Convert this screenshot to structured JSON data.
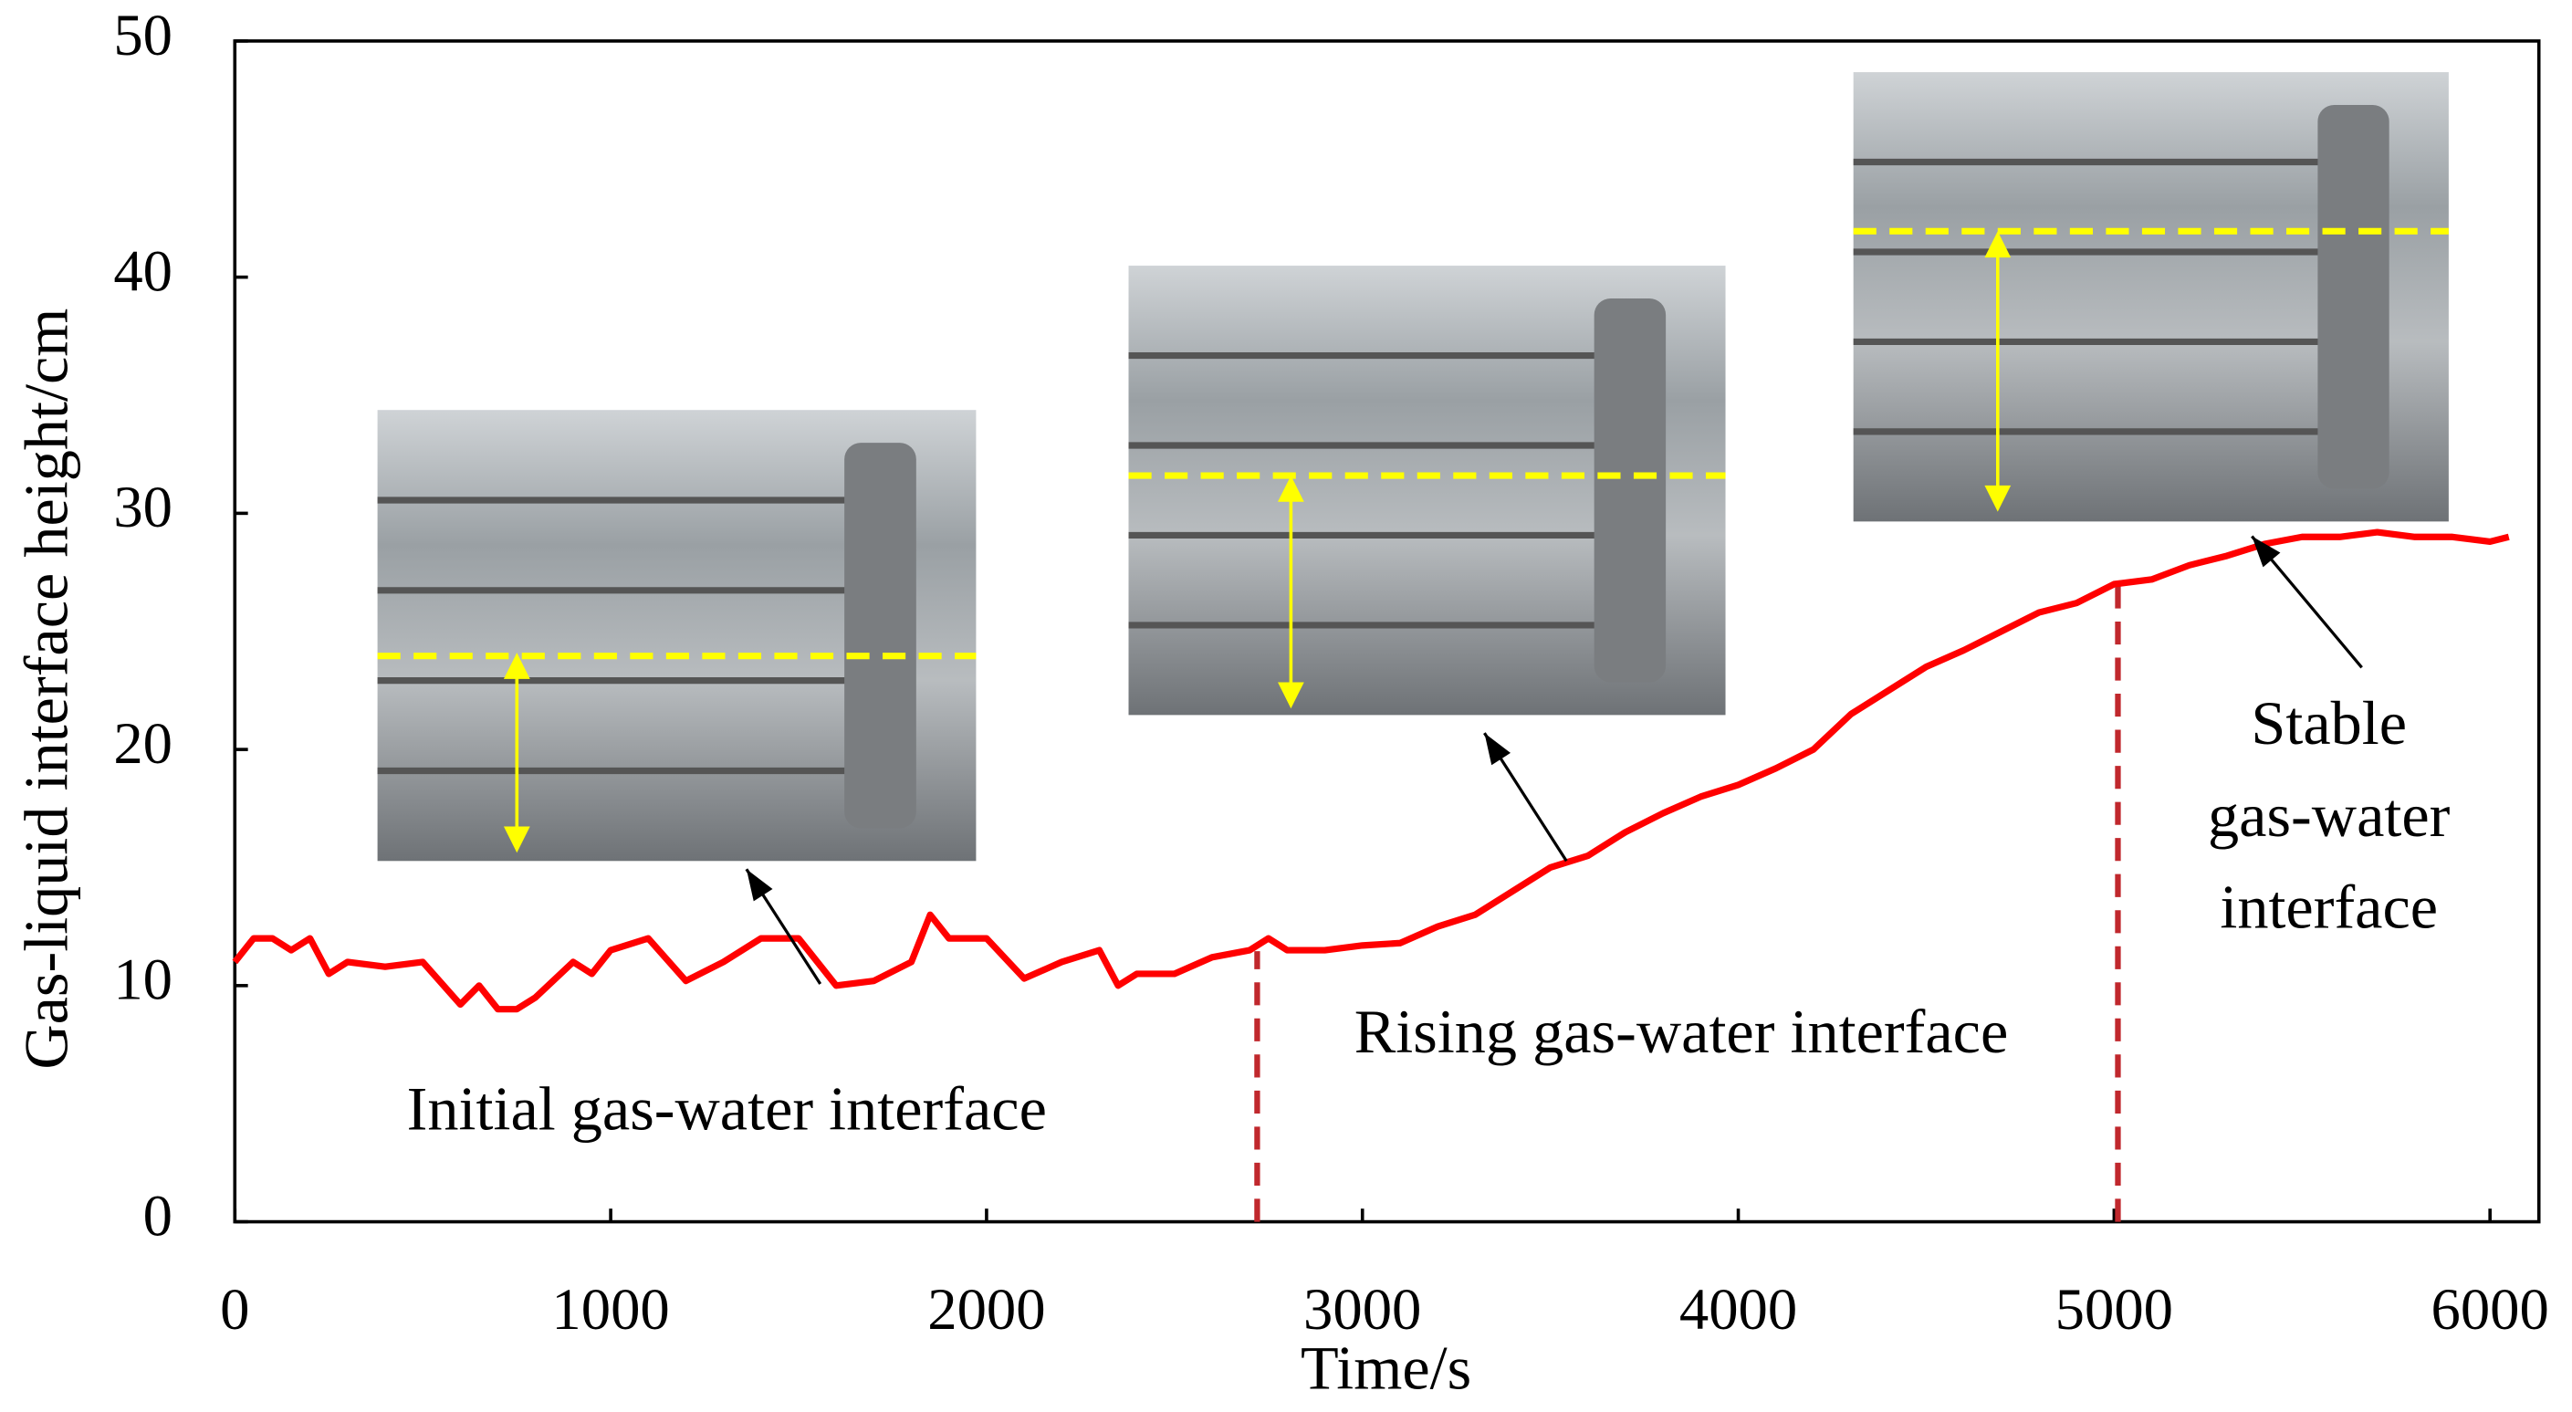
{
  "chart_data": {
    "type": "line",
    "xlabel": "Time/s",
    "ylabel": "Gas-liquid interface height/cm",
    "xlim": [
      0,
      6130
    ],
    "ylim": [
      0,
      50
    ],
    "xticks": [
      0,
      1000,
      2000,
      3000,
      4000,
      5000,
      6000
    ],
    "yticks": [
      0,
      10,
      20,
      30,
      40,
      50
    ],
    "grid": false,
    "x": [
      0,
      50,
      100,
      150,
      200,
      250,
      300,
      400,
      500,
      600,
      650,
      700,
      750,
      800,
      900,
      950,
      1000,
      1100,
      1200,
      1300,
      1400,
      1500,
      1600,
      1700,
      1800,
      1850,
      1900,
      2000,
      2100,
      2200,
      2300,
      2350,
      2400,
      2500,
      2600,
      2700,
      2750,
      2800,
      2900,
      3000,
      3100,
      3200,
      3300,
      3400,
      3500,
      3600,
      3700,
      3800,
      3900,
      4000,
      4100,
      4200,
      4300,
      4400,
      4500,
      4600,
      4700,
      4800,
      4900,
      5000,
      5100,
      5200,
      5300,
      5400,
      5500,
      5600,
      5700,
      5800,
      5900,
      6000,
      6050
    ],
    "series": [
      {
        "name": "Gas-liquid interface height",
        "color": "#ff0000",
        "values": [
          11,
          12,
          12,
          11.5,
          12,
          10.5,
          11,
          10.8,
          11,
          9.2,
          10,
          9,
          9,
          9.5,
          11,
          10.5,
          11.5,
          12,
          10.2,
          11,
          12,
          12,
          10,
          10.2,
          11,
          13,
          12,
          12,
          10.3,
          11,
          11.5,
          10,
          10.5,
          10.5,
          11.2,
          11.5,
          12,
          11.5,
          11.5,
          11.7,
          11.8,
          12.5,
          13,
          14,
          15,
          15.5,
          16.5,
          17.3,
          18,
          18.5,
          19.2,
          20,
          21.5,
          22.5,
          23.5,
          24.2,
          25,
          25.8,
          26.2,
          27,
          27.2,
          27.8,
          28.2,
          28.7,
          29,
          29,
          29.2,
          29,
          29,
          28.8,
          29
        ]
      }
    ],
    "vlines": [
      2720,
      5010
    ],
    "vline_color": "#c0282d",
    "annotations": {
      "initial": "Initial gas-water interface",
      "rising": "Rising gas-water interface",
      "stable": [
        "Stable",
        "gas-water",
        "interface"
      ]
    }
  }
}
